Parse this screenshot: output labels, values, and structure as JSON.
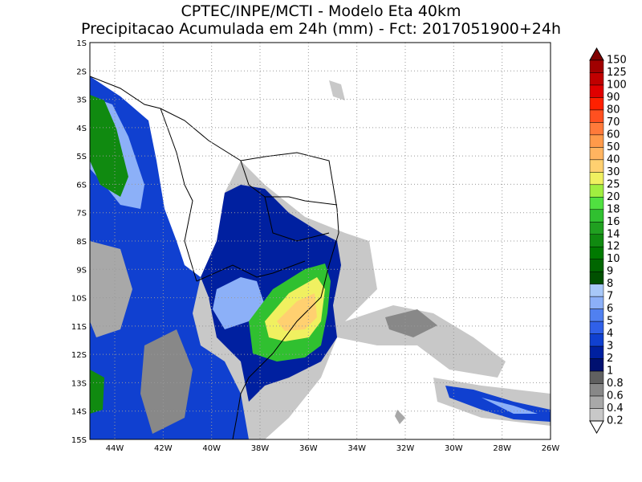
{
  "header": {
    "line1": "CPTEC/INPE/MCTI - Modelo Eta 40km",
    "line2": "Precipitacao Acumulada em 24h (mm) - Fct: 2017051900+24h"
  },
  "map": {
    "lat_labels": [
      "1S",
      "2S",
      "3S",
      "4S",
      "5S",
      "6S",
      "7S",
      "8S",
      "9S",
      "10S",
      "11S",
      "12S",
      "13S",
      "14S",
      "15S"
    ],
    "lon_labels": [
      "44W",
      "42W",
      "40W",
      "38W",
      "36W",
      "34W",
      "32W",
      "30W",
      "28W",
      "26W"
    ]
  },
  "colorbar": {
    "labels": [
      "150",
      "125",
      "100",
      "90",
      "80",
      "70",
      "60",
      "50",
      "40",
      "30",
      "25",
      "20",
      "18",
      "16",
      "14",
      "12",
      "10",
      "9",
      "8",
      "7",
      "6",
      "5",
      "4",
      "3",
      "2",
      "1",
      "0.8",
      "0.6",
      "0.4",
      "0.2"
    ]
  }
}
